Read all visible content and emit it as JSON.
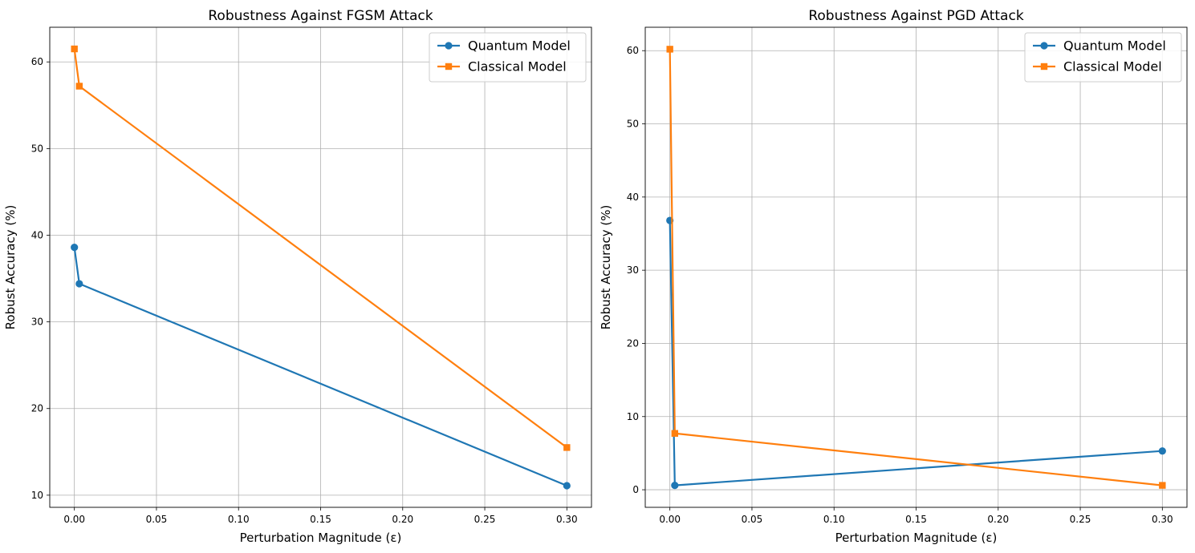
{
  "chart_data": [
    {
      "type": "line",
      "title": "Robustness Against FGSM Attack",
      "xlabel": "Perturbation Magnitude (ε)",
      "ylabel": "Robust Accuracy (%)",
      "xlim": [
        -0.015,
        0.315
      ],
      "ylim": [
        8.6,
        64.0
      ],
      "xticks": [
        0.0,
        0.05,
        0.1,
        0.15,
        0.2,
        0.25,
        0.3
      ],
      "xtick_labels": [
        "0.00",
        "0.05",
        "0.10",
        "0.15",
        "0.20",
        "0.25",
        "0.30"
      ],
      "yticks": [
        10,
        20,
        30,
        40,
        50,
        60
      ],
      "ytick_labels": [
        "10",
        "20",
        "30",
        "40",
        "50",
        "60"
      ],
      "grid": true,
      "legend_position": "top-right",
      "series": [
        {
          "name": "Quantum Model",
          "color": "#1f77b4",
          "marker": "circle",
          "x": [
            0.0,
            0.003,
            0.3
          ],
          "y": [
            38.6,
            34.4,
            11.1
          ]
        },
        {
          "name": "Classical Model",
          "color": "#ff7f0e",
          "marker": "square",
          "x": [
            0.0,
            0.003,
            0.3
          ],
          "y": [
            61.5,
            57.2,
            15.5
          ]
        }
      ]
    },
    {
      "type": "line",
      "title": "Robustness Against PGD Attack",
      "xlabel": "Perturbation Magnitude (ε)",
      "ylabel": "Robust Accuracy (%)",
      "xlim": [
        -0.015,
        0.315
      ],
      "ylim": [
        -2.4,
        63.2
      ],
      "xticks": [
        0.0,
        0.05,
        0.1,
        0.15,
        0.2,
        0.25,
        0.3
      ],
      "xtick_labels": [
        "0.00",
        "0.05",
        "0.10",
        "0.15",
        "0.20",
        "0.25",
        "0.30"
      ],
      "yticks": [
        0,
        10,
        20,
        30,
        40,
        50,
        60
      ],
      "ytick_labels": [
        "0",
        "10",
        "20",
        "30",
        "40",
        "50",
        "60"
      ],
      "grid": true,
      "legend_position": "top-right",
      "series": [
        {
          "name": "Quantum Model",
          "color": "#1f77b4",
          "marker": "circle",
          "x": [
            0.0,
            0.003,
            0.3
          ],
          "y": [
            36.8,
            0.6,
            5.3
          ]
        },
        {
          "name": "Classical Model",
          "color": "#ff7f0e",
          "marker": "square",
          "x": [
            0.0,
            0.003,
            0.3
          ],
          "y": [
            60.2,
            7.7,
            0.6
          ]
        }
      ]
    }
  ]
}
